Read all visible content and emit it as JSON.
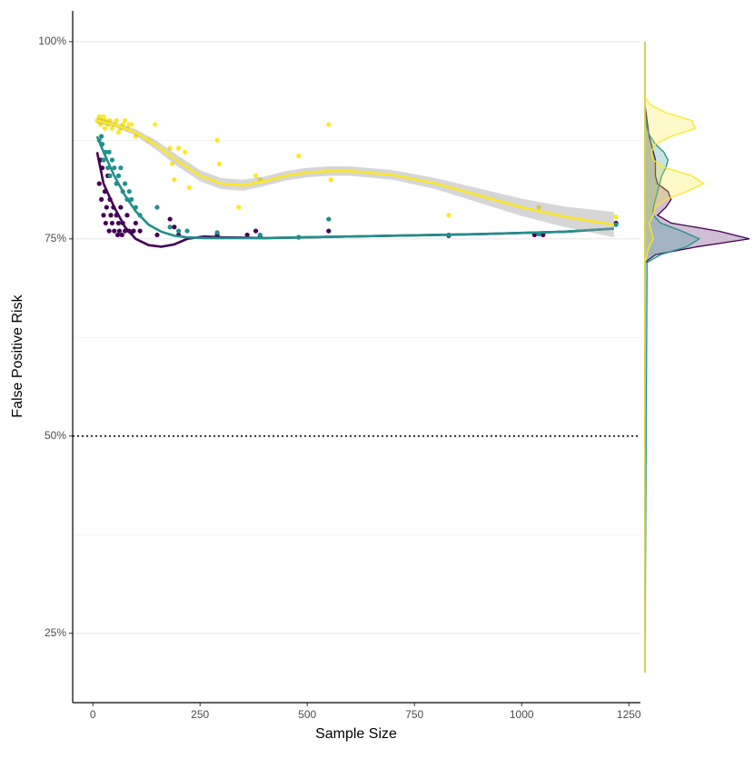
{
  "chart_data": {
    "type": "scatter",
    "xlabel": "Sample Size",
    "ylabel": "False Positive Risk",
    "xlim": [
      -47,
      1277
    ],
    "ylim": [
      16.2,
      103.9
    ],
    "xticks": [
      0,
      250,
      500,
      750,
      1000,
      1250
    ],
    "yticks": [
      {
        "value": 25,
        "label": "25%"
      },
      {
        "value": 50,
        "label": "50%"
      },
      {
        "value": 75,
        "label": "75%"
      },
      {
        "value": 100,
        "label": "100%"
      }
    ],
    "y_minor_gridlines": [
      37.5,
      62.5,
      87.5
    ],
    "hline": 50,
    "grid": true,
    "density_xlim": [
      0,
      1
    ],
    "density_y": [
      20,
      72,
      73,
      74,
      75,
      76,
      77,
      78,
      79,
      80,
      81,
      82,
      83,
      84,
      85,
      86,
      87,
      88,
      89,
      90,
      91,
      92,
      93,
      100
    ],
    "series": [
      {
        "color": "#440154",
        "x": [
          15,
          18,
          20,
          22,
          25,
          28,
          30,
          32,
          35,
          38,
          40,
          42,
          45,
          48,
          50,
          55,
          58,
          60,
          62,
          65,
          68,
          70,
          75,
          80,
          85,
          90,
          95,
          100,
          110,
          150,
          180,
          190,
          200,
          290,
          360,
          380,
          390,
          480,
          550,
          830,
          1030,
          1050,
          1220
        ],
        "y": [
          82,
          85,
          80,
          84,
          78,
          81,
          77,
          79,
          83,
          76,
          80,
          78,
          77,
          79,
          76,
          78,
          75.5,
          77,
          76,
          79,
          75.5,
          77,
          76,
          78,
          76,
          75.8,
          76,
          77,
          76,
          75.5,
          77.5,
          76.5,
          75.5,
          75.5,
          75.5,
          76,
          75.3,
          75.2,
          76,
          75.4,
          75.5,
          75.5,
          77
        ],
        "smooth_x": [
          10,
          25,
          50,
          75,
          100,
          130,
          160,
          190,
          220,
          260,
          300,
          400,
          500,
          700,
          900,
          1100,
          1215
        ],
        "smooth_y": [
          86,
          82,
          79,
          76.5,
          75,
          74.2,
          74,
          74.3,
          75,
          75.3,
          75.2,
          75.1,
          75.2,
          75.4,
          75.6,
          75.9,
          76.3
        ],
        "density": [
          0,
          0,
          0.1,
          0.5,
          1.0,
          0.7,
          0.25,
          0.12,
          0.2,
          0.25,
          0.22,
          0.12,
          0.1,
          0.1,
          0.1,
          0.08,
          0.06,
          0.04,
          0.03,
          0.02,
          0.01,
          0,
          0,
          0
        ]
      },
      {
        "color": "#21908c",
        "x": [
          15,
          20,
          22,
          25,
          30,
          35,
          38,
          40,
          45,
          50,
          55,
          60,
          65,
          70,
          75,
          80,
          85,
          90,
          100,
          110,
          150,
          180,
          200,
          220,
          290,
          390,
          480,
          550,
          830,
          1040,
          1220
        ],
        "y": [
          87.5,
          88,
          87,
          85,
          86,
          84,
          86,
          83,
          85,
          84,
          82,
          83,
          84,
          81,
          82,
          80,
          81,
          80,
          79,
          78,
          79,
          76.5,
          76,
          76,
          75.8,
          75.5,
          75.2,
          77.5,
          75.5,
          75.6,
          76.8
        ],
        "smooth_x": [
          10,
          25,
          50,
          75,
          100,
          130,
          160,
          190,
          220,
          260,
          300,
          400,
          500,
          700,
          900,
          1100,
          1215
        ],
        "smooth_y": [
          88,
          86,
          83,
          80.5,
          78.5,
          76.8,
          75.9,
          75.4,
          75.2,
          75.1,
          75.1,
          75.1,
          75.2,
          75.4,
          75.6,
          75.9,
          76.3
        ],
        "density": [
          0,
          0.02,
          0.15,
          0.4,
          0.52,
          0.35,
          0.15,
          0.08,
          0.08,
          0.1,
          0.12,
          0.14,
          0.16,
          0.2,
          0.22,
          0.18,
          0.1,
          0.05,
          0.02,
          0.01,
          0,
          0,
          0,
          0
        ]
      },
      {
        "color": "#fde725",
        "x": [
          10,
          15,
          18,
          20,
          25,
          28,
          30,
          35,
          40,
          45,
          50,
          55,
          60,
          65,
          70,
          75,
          80,
          85,
          90,
          100,
          130,
          145,
          180,
          185,
          190,
          200,
          215,
          225,
          290,
          295,
          340,
          380,
          390,
          480,
          550,
          555,
          830,
          1040,
          1220
        ],
        "y": [
          90,
          90.5,
          89.5,
          90,
          90.5,
          89,
          90,
          89.5,
          90,
          89,
          89.5,
          90,
          88.5,
          89,
          89.5,
          90,
          89,
          89.5,
          89.5,
          88,
          87.5,
          89.5,
          86.5,
          84.5,
          82.5,
          86.5,
          86,
          81.5,
          87.5,
          84.5,
          79,
          83,
          82.5,
          85.5,
          89.5,
          82.5,
          78,
          79,
          77.8
        ],
        "smooth_x": [
          10,
          50,
          100,
          150,
          200,
          250,
          300,
          350,
          400,
          450,
          500,
          550,
          600,
          700,
          800,
          900,
          1000,
          1100,
          1215
        ],
        "smooth_y": [
          90,
          89.5,
          88.5,
          86.8,
          84.8,
          83,
          82,
          81.8,
          82.3,
          83,
          83.4,
          83.6,
          83.6,
          83.1,
          82,
          80.5,
          79,
          77.8,
          76.8
        ],
        "band_lower": [
          89.6,
          89.2,
          88.1,
          86.2,
          84.1,
          82.3,
          81.3,
          81.1,
          81.7,
          82.4,
          82.8,
          83.0,
          83.0,
          82.5,
          81.3,
          79.6,
          77.9,
          76.5,
          75.2
        ],
        "band_upper": [
          90.4,
          89.8,
          88.9,
          87.4,
          85.5,
          83.7,
          82.7,
          82.5,
          82.9,
          83.6,
          84.0,
          84.2,
          84.2,
          83.7,
          82.7,
          81.4,
          80.1,
          79.1,
          78.4
        ],
        "density": [
          0,
          0,
          0.02,
          0.04,
          0.08,
          0.06,
          0.04,
          0.08,
          0.1,
          0.2,
          0.4,
          0.56,
          0.45,
          0.2,
          0.08,
          0.06,
          0.1,
          0.25,
          0.48,
          0.45,
          0.2,
          0.05,
          0,
          0
        ]
      }
    ]
  }
}
